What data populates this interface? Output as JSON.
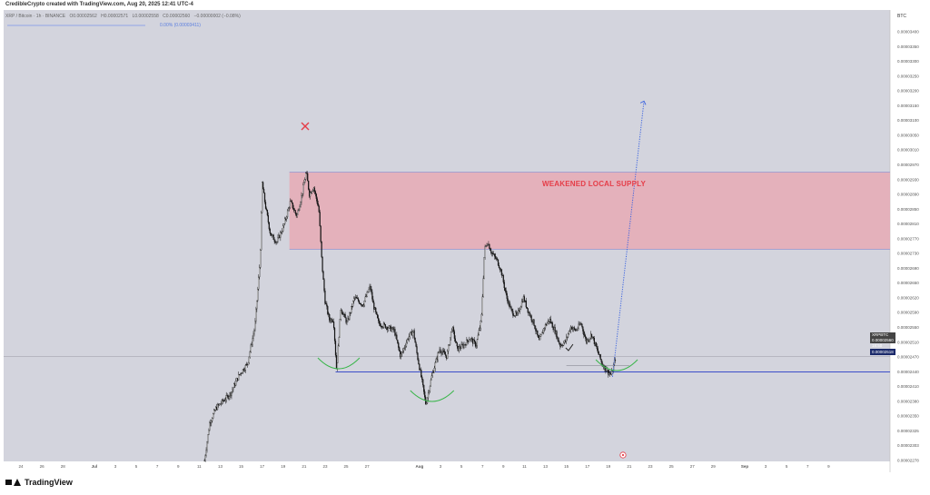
{
  "header": {
    "credit": "CredibleCrypto created with TradingView.com, Aug 20, 2025 12:41 UTC-4",
    "symbol": "XRP / Bitcoin · 1h · BINANCE",
    "ohlc": {
      "open": "O0.00002562",
      "high": "H0.00002571",
      "low": "L0.00002558",
      "close": "C0.00002560",
      "change": "−0.00000002 (−0.08%)"
    },
    "fib_label": "0.00% (0.00003411)"
  },
  "footer": {
    "brand": "TradingView"
  },
  "colors": {
    "plot_bg": "#d3d4dd",
    "supply_zone": "#e6aab5",
    "supply_border": "#8e9bd6",
    "support_line": "#3b4ec8",
    "neckline_arc": "#39b54a",
    "projection": "#3b63e0",
    "x_mark": "#e53d48",
    "label_red": "#e53d48"
  },
  "chart_data": {
    "type": "candlestick",
    "pair": "XRP/BTC",
    "timeframe": "1h",
    "exchange": "BINANCE",
    "currency_label": "BTC",
    "ylim": [
      2.278e-05,
      3.44e-05
    ],
    "y_ticks": [
      "0.00003400",
      "0.00003350",
      "0.00003300",
      "0.00003250",
      "0.00003200",
      "0.00003150",
      "0.00003100",
      "0.00003050",
      "0.00003010",
      "0.00002970",
      "0.00002930",
      "0.00002890",
      "0.00002850",
      "0.00002810",
      "0.00002770",
      "0.00002730",
      "0.00002690",
      "0.00002650",
      "0.00002620",
      "0.00002590",
      "0.00002550",
      "0.00002510",
      "0.00002470",
      "0.00002440",
      "0.00002410",
      "0.00002380",
      "0.00002350",
      "0.00002325",
      "0.00002303",
      "0.00002278"
    ],
    "x_ticks": [
      {
        "label": "24",
        "day": -7
      },
      {
        "label": "26",
        "day": -5
      },
      {
        "label": "28",
        "day": -3
      },
      {
        "label": "Jul",
        "day": 0
      },
      {
        "label": "3",
        "day": 2
      },
      {
        "label": "5",
        "day": 4
      },
      {
        "label": "7",
        "day": 6
      },
      {
        "label": "9",
        "day": 8
      },
      {
        "label": "11",
        "day": 10
      },
      {
        "label": "13",
        "day": 12
      },
      {
        "label": "15",
        "day": 14
      },
      {
        "label": "17",
        "day": 16
      },
      {
        "label": "19",
        "day": 18
      },
      {
        "label": "21",
        "day": 20
      },
      {
        "label": "23",
        "day": 22
      },
      {
        "label": "25",
        "day": 24
      },
      {
        "label": "27",
        "day": 26
      },
      {
        "label": "Aug",
        "day": 31
      },
      {
        "label": "3",
        "day": 33
      },
      {
        "label": "5",
        "day": 35
      },
      {
        "label": "7",
        "day": 37
      },
      {
        "label": "9",
        "day": 39
      },
      {
        "label": "11",
        "day": 41
      },
      {
        "label": "13",
        "day": 43
      },
      {
        "label": "15",
        "day": 45
      },
      {
        "label": "17",
        "day": 47
      },
      {
        "label": "19",
        "day": 49
      },
      {
        "label": "21",
        "day": 51
      },
      {
        "label": "23",
        "day": 53
      },
      {
        "label": "25",
        "day": 55
      },
      {
        "label": "27",
        "day": 57
      },
      {
        "label": "29",
        "day": 59
      },
      {
        "label": "Sep",
        "day": 62
      },
      {
        "label": "3",
        "day": 64
      },
      {
        "label": "5",
        "day": 66
      },
      {
        "label": "7",
        "day": 68
      },
      {
        "label": "9",
        "day": 70
      }
    ],
    "price_path": [
      [
        10.5,
        2.278e-05
      ],
      [
        11.0,
        2.38e-05
      ],
      [
        11.6,
        2.42e-05
      ],
      [
        12.3,
        2.44e-05
      ],
      [
        13.0,
        2.46e-05
      ],
      [
        13.8,
        2.51e-05
      ],
      [
        14.6,
        2.54e-05
      ],
      [
        15.3,
        2.64e-05
      ],
      [
        15.8,
        2.82e-05
      ],
      [
        16.0,
        3.03e-05
      ],
      [
        16.3,
        2.97e-05
      ],
      [
        16.8,
        2.89e-05
      ],
      [
        17.4,
        2.87e-05
      ],
      [
        18.0,
        2.91e-05
      ],
      [
        18.7,
        2.98e-05
      ],
      [
        19.3,
        2.94e-05
      ],
      [
        19.8,
        3e-05
      ],
      [
        20.2,
        3.06e-05
      ],
      [
        20.5,
        3e-05
      ],
      [
        20.9,
        3.02e-05
      ],
      [
        21.4,
        2.96e-05
      ],
      [
        21.7,
        2.81e-05
      ],
      [
        22.0,
        2.71e-05
      ],
      [
        22.4,
        2.66e-05
      ],
      [
        22.8,
        2.66e-05
      ],
      [
        23.1,
        2.52e-05
      ],
      [
        23.5,
        2.69e-05
      ],
      [
        24.1,
        2.65e-05
      ],
      [
        24.8,
        2.72e-05
      ],
      [
        25.6,
        2.7e-05
      ],
      [
        26.3,
        2.75e-05
      ],
      [
        26.6,
        2.7e-05
      ],
      [
        27.1,
        2.65e-05
      ],
      [
        27.9,
        2.64e-05
      ],
      [
        28.6,
        2.63e-05
      ],
      [
        29.2,
        2.56e-05
      ],
      [
        29.9,
        2.61e-05
      ],
      [
        30.4,
        2.63e-05
      ],
      [
        30.8,
        2.56e-05
      ],
      [
        31.2,
        2.5e-05
      ],
      [
        31.6,
        2.43e-05
      ],
      [
        32.2,
        2.51e-05
      ],
      [
        32.9,
        2.58e-05
      ],
      [
        33.6,
        2.56e-05
      ],
      [
        34.1,
        2.64e-05
      ],
      [
        34.6,
        2.58e-05
      ],
      [
        35.2,
        2.59e-05
      ],
      [
        35.8,
        2.61e-05
      ],
      [
        36.4,
        2.59e-05
      ],
      [
        36.9,
        2.66e-05
      ],
      [
        37.2,
        2.85e-05
      ],
      [
        37.5,
        2.87e-05
      ],
      [
        37.9,
        2.84e-05
      ],
      [
        38.4,
        2.82e-05
      ],
      [
        38.8,
        2.79e-05
      ],
      [
        39.3,
        2.72e-05
      ],
      [
        39.8,
        2.68e-05
      ],
      [
        40.3,
        2.67e-05
      ],
      [
        40.9,
        2.72e-05
      ],
      [
        41.4,
        2.68e-05
      ],
      [
        41.9,
        2.65e-05
      ],
      [
        42.4,
        2.6e-05
      ],
      [
        42.9,
        2.64e-05
      ],
      [
        43.4,
        2.66e-05
      ],
      [
        43.9,
        2.63e-05
      ],
      [
        44.4,
        2.59e-05
      ],
      [
        44.9,
        2.6e-05
      ],
      [
        45.4,
        2.64e-05
      ],
      [
        45.9,
        2.63e-05
      ],
      [
        46.4,
        2.65e-05
      ],
      [
        46.9,
        2.6e-05
      ],
      [
        47.4,
        2.62e-05
      ],
      [
        47.9,
        2.58e-05
      ],
      [
        48.4,
        2.54e-05
      ],
      [
        48.9,
        2.52e-05
      ],
      [
        49.3,
        2.51e-05
      ],
      [
        49.7,
        2.56e-05
      ]
    ],
    "supply_zone": {
      "label": "WEAKENED LOCAL SUPPLY",
      "x_start": 18.6,
      "y_low": 2.85e-05,
      "y_high": 3.06e-05
    },
    "support_level": 2.518e-05,
    "current_price": {
      "ticker": "XRPBTC",
      "value": "0.00002560",
      "countdown": "18:50"
    },
    "support_price_label": "0.00002518",
    "projection": {
      "from": [
        49.4,
        2.505e-05
      ],
      "to": [
        52.4,
        3.252e-05
      ]
    }
  }
}
